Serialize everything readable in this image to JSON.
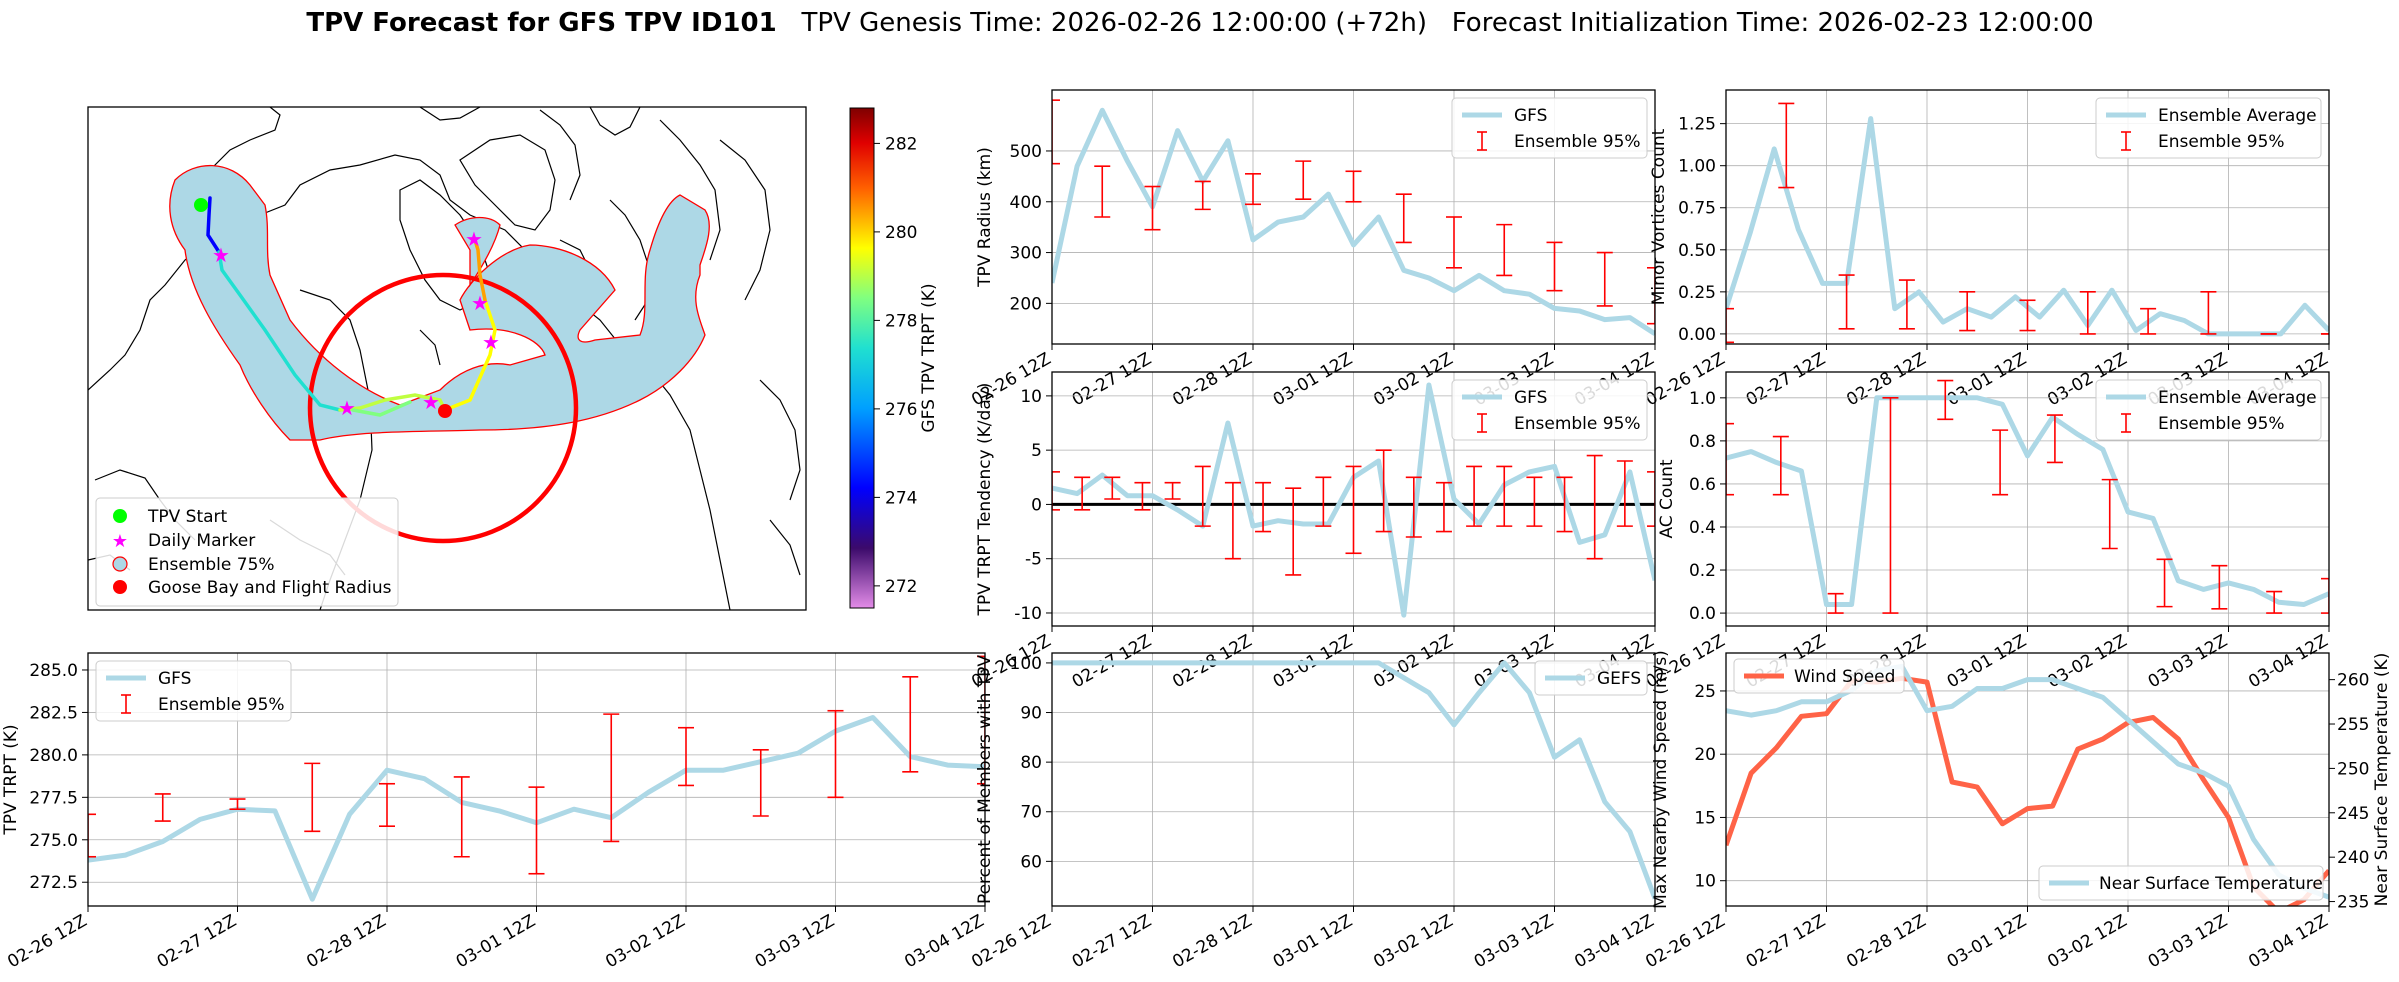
{
  "title": {
    "bold": "TPV Forecast for GFS TPV ID101",
    "genesis": "TPV Genesis Time: 2026-02-26 12:00:00 (+72h)",
    "init": "Forecast Initialization Time: 2026-02-23 12:00:00"
  },
  "x_tick_labels": [
    "02-26 12Z",
    "02-27 12Z",
    "02-28 12Z",
    "03-01 12Z",
    "03-02 12Z",
    "03-03 12Z",
    "03-04 12Z"
  ],
  "map": {
    "colorbar_label": "GFS TPV TRPT (K)",
    "colorbar_ticks": [
      "272",
      "274",
      "276",
      "278",
      "280",
      "282"
    ],
    "colorbar_range": [
      271.5,
      282.8
    ],
    "legend": [
      "TPV Start",
      "Daily Marker",
      "Ensemble 75%",
      "Goose Bay and Flight Radius"
    ],
    "colors": {
      "start": "#00ff00",
      "daily": "#ff00ff",
      "ensemble": "#add8e6",
      "goose": "#ff0000"
    }
  },
  "chart_data": [
    {
      "type": "line",
      "name": "radius",
      "ylabel": "TPV Radius (km)",
      "ylim": [
        120,
        620
      ],
      "yticks": [
        200,
        300,
        400,
        500
      ],
      "legend": [
        "GFS",
        "Ensemble 95%"
      ],
      "series": [
        {
          "name": "GFS",
          "values": [
            240,
            470,
            580,
            480,
            390,
            540,
            440,
            520,
            325,
            360,
            370,
            415,
            315,
            370,
            265,
            250,
            225,
            255,
            225,
            218,
            190,
            185,
            168,
            172,
            140
          ]
        }
      ],
      "error_bars": [
        [
          475,
          600
        ],
        [
          370,
          470
        ],
        [
          345,
          430
        ],
        [
          385,
          440
        ],
        [
          395,
          455
        ],
        [
          405,
          480
        ],
        [
          400,
          460
        ],
        [
          320,
          415
        ],
        [
          270,
          370
        ],
        [
          255,
          355
        ],
        [
          225,
          320
        ],
        [
          195,
          300
        ],
        [
          160,
          270
        ]
      ]
    },
    {
      "type": "line",
      "name": "minor_vortices",
      "ylabel": "Minor Vortices Count",
      "ylim": [
        -0.06,
        1.45
      ],
      "yticks": [
        0.0,
        0.25,
        0.5,
        0.75,
        1.0,
        1.25
      ],
      "legend": [
        "Ensemble Average",
        "Ensemble 95%"
      ],
      "series": [
        {
          "name": "Ensemble Average",
          "values": [
            0.15,
            0.6,
            1.1,
            0.62,
            0.3,
            0.3,
            1.28,
            0.15,
            0.25,
            0.07,
            0.15,
            0.1,
            0.22,
            0.1,
            0.26,
            0.05,
            0.26,
            0.02,
            0.12,
            0.08,
            0.0,
            0.0,
            0.0,
            0.0,
            0.17,
            0.02
          ]
        }
      ],
      "error_bars": [
        [
          -0.05,
          0.15
        ],
        [
          0.87,
          1.37
        ],
        [
          0.03,
          0.35
        ],
        [
          0.03,
          0.32
        ],
        [
          0.02,
          0.25
        ],
        [
          0.02,
          0.2
        ],
        [
          0.0,
          0.25
        ],
        [
          0.0,
          0.15
        ],
        [
          0.0,
          0.25
        ],
        [
          0.0,
          0.0
        ],
        [
          0.0,
          0.0
        ]
      ]
    },
    {
      "type": "line",
      "name": "trpt_tendency",
      "ylabel": "TPV TRPT Tendency (K/day)",
      "ylim": [
        -11.2,
        12.2
      ],
      "yticks": [
        -10,
        -5,
        0,
        5,
        10
      ],
      "legend": [
        "GFS",
        "Ensemble 95%"
      ],
      "series": [
        {
          "name": "GFS",
          "values": [
            1.5,
            1.0,
            2.7,
            0.8,
            0.8,
            -0.5,
            -2.0,
            7.5,
            -2.0,
            -1.5,
            -1.8,
            -1.8,
            2.5,
            4.0,
            -10.2,
            11.0,
            0.5,
            -1.8,
            1.8,
            3.0,
            3.5,
            -3.5,
            -2.8,
            3.0,
            -7.0
          ]
        }
      ],
      "error_bars": [
        [
          -0.5,
          3.0
        ],
        [
          -0.5,
          2.5
        ],
        [
          0.5,
          2.5
        ],
        [
          -0.5,
          2.0
        ],
        [
          0.5,
          2.0
        ],
        [
          -2.0,
          3.5
        ],
        [
          -5.0,
          2.0
        ],
        [
          -2.5,
          2.0
        ],
        [
          -6.5,
          1.5
        ],
        [
          -2.0,
          2.5
        ],
        [
          -4.5,
          3.5
        ],
        [
          -2.5,
          5.0
        ],
        [
          -3.0,
          2.5
        ],
        [
          -2.5,
          2.0
        ],
        [
          -2.0,
          3.5
        ],
        [
          -2.0,
          3.5
        ],
        [
          -2.0,
          2.5
        ],
        [
          -2.5,
          2.5
        ],
        [
          -5.0,
          4.5
        ],
        [
          -2.0,
          4.0
        ],
        [
          -2.0,
          3.0
        ]
      ]
    },
    {
      "type": "line",
      "name": "ac_count",
      "ylabel": "AC Count",
      "ylim": [
        -0.06,
        1.12
      ],
      "yticks": [
        0.0,
        0.2,
        0.4,
        0.6,
        0.8,
        1.0
      ],
      "legend": [
        "Ensemble Average",
        "Ensemble 95%"
      ],
      "series": [
        {
          "name": "Ensemble Average",
          "values": [
            0.72,
            0.75,
            0.7,
            0.66,
            0.04,
            0.04,
            1.0,
            1.0,
            1.0,
            1.0,
            1.0,
            0.97,
            0.73,
            0.91,
            0.83,
            0.76,
            0.47,
            0.44,
            0.15,
            0.11,
            0.14,
            0.11,
            0.05,
            0.04,
            0.09
          ]
        }
      ],
      "error_bars": [
        [
          0.55,
          0.88
        ],
        [
          0.55,
          0.82
        ],
        [
          0.0,
          0.09
        ],
        [
          0.0,
          1.0
        ],
        [
          0.9,
          1.08
        ],
        [
          0.55,
          0.85
        ],
        [
          0.7,
          0.92
        ],
        [
          0.3,
          0.62
        ],
        [
          0.03,
          0.25
        ],
        [
          0.02,
          0.22
        ],
        [
          0.0,
          0.1
        ],
        [
          0.0,
          0.16
        ]
      ]
    },
    {
      "type": "line",
      "name": "trpt",
      "ylabel": "TPV TRPT (K)",
      "ylim": [
        271.1,
        286.0
      ],
      "yticks": [
        272.5,
        275.0,
        277.5,
        280.0,
        282.5,
        285.0
      ],
      "legend": [
        "GFS",
        "Ensemble 95%"
      ],
      "series": [
        {
          "name": "GFS",
          "values": [
            273.8,
            274.1,
            274.9,
            276.2,
            276.8,
            276.7,
            271.5,
            276.5,
            279.1,
            278.6,
            277.2,
            276.7,
            276.0,
            276.8,
            276.3,
            277.8,
            279.1,
            279.1,
            279.6,
            280.1,
            281.4,
            282.2,
            279.9,
            279.4,
            279.3
          ]
        }
      ],
      "error_bars": [
        [
          274.0,
          276.5
        ],
        [
          276.1,
          277.7
        ],
        [
          276.8,
          277.4
        ],
        [
          275.5,
          279.5
        ],
        [
          275.8,
          278.3
        ],
        [
          274.0,
          278.7
        ],
        [
          273.0,
          278.1
        ],
        [
          274.9,
          282.4
        ],
        [
          278.2,
          281.6
        ],
        [
          276.4,
          280.3
        ],
        [
          277.5,
          282.6
        ],
        [
          279.0,
          284.6
        ],
        [
          278.3,
          285.8
        ]
      ]
    },
    {
      "type": "line",
      "name": "percent_members",
      "ylabel": "Percent of Members with TPV",
      "ylim": [
        51,
        102
      ],
      "yticks": [
        60,
        70,
        80,
        90,
        100
      ],
      "legend": [
        "GEFS"
      ],
      "series": [
        {
          "name": "GEFS",
          "values": [
            100,
            100,
            100,
            100,
            100,
            100,
            100,
            100,
            100,
            100,
            100,
            100,
            100,
            100,
            97,
            94,
            87.5,
            94,
            100,
            94,
            81,
            84.5,
            72,
            66,
            52.5
          ]
        }
      ]
    },
    {
      "type": "line",
      "name": "wind_temp",
      "ylabel": "Max Nearby Wind Speed (m/s)",
      "y2label": "Near Surface Temperature (K)",
      "ylim": [
        8,
        28
      ],
      "yticks": [
        10,
        15,
        20,
        25
      ],
      "y2lim": [
        234.5,
        263
      ],
      "y2ticks": [
        235,
        240,
        245,
        250,
        255,
        260
      ],
      "legend": [
        "Wind Speed",
        "Near Surface Temperature"
      ],
      "colors": {
        "wind": "#ff6347",
        "temp": "#add8e6",
        "right_axis_label": "#4169e1"
      },
      "series": [
        {
          "name": "Wind Speed",
          "values": [
            12.8,
            18.5,
            20.5,
            23.0,
            23.2,
            25.8,
            25.7,
            26.0,
            25.7,
            17.8,
            17.4,
            14.5,
            15.7,
            15.9,
            20.4,
            21.2,
            22.5,
            22.9,
            21.2,
            18.0,
            15.0,
            9.5,
            7.5,
            8.5,
            10.8
          ]
        },
        {
          "name": "Near Surface Temperature",
          "values": [
            256.5,
            256.0,
            256.5,
            257.5,
            257.5,
            258.8,
            261.0,
            261.5,
            256.5,
            257.0,
            259.0,
            259.0,
            260.0,
            260.0,
            259.0,
            258.0,
            255.5,
            253.0,
            250.5,
            249.5,
            248.0,
            242.0,
            238.0,
            236.5,
            235.5
          ]
        }
      ]
    }
  ]
}
